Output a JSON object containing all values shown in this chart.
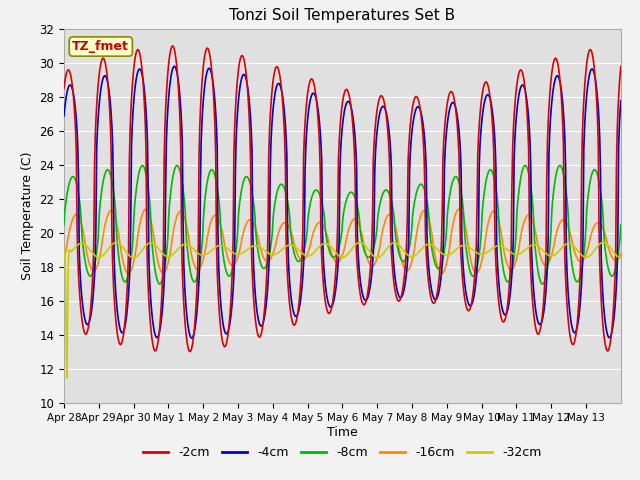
{
  "title": "Tonzi Soil Temperatures Set B",
  "xlabel": "Time",
  "ylabel": "Soil Temperature (C)",
  "ylim": [
    10,
    32
  ],
  "num_days": 16,
  "background_color": "#e0e0e0",
  "fig_background": "#f2f2f2",
  "grid_color": "#ffffff",
  "label_box_text": "TZ_fmet",
  "label_box_facecolor": "#ffffcc",
  "label_box_edgecolor": "#888800",
  "label_text_color": "#cc0000",
  "x_tick_labels": [
    "Apr 28",
    "Apr 29",
    "Apr 30",
    "May 1",
    "May 2",
    "May 3",
    "May 4",
    "May 5",
    "May 6",
    "May 7",
    "May 8",
    "May 9",
    "May 10",
    "May 11",
    "May 12",
    "May 13"
  ],
  "series_labels": [
    "-2cm",
    "-4cm",
    "-8cm",
    "-16cm",
    "-32cm"
  ],
  "series_colors": [
    "#dd0000",
    "#0000cc",
    "#00bb00",
    "#ff8800",
    "#cccc00"
  ],
  "line_width": 1.2,
  "pts_per_day": 48
}
